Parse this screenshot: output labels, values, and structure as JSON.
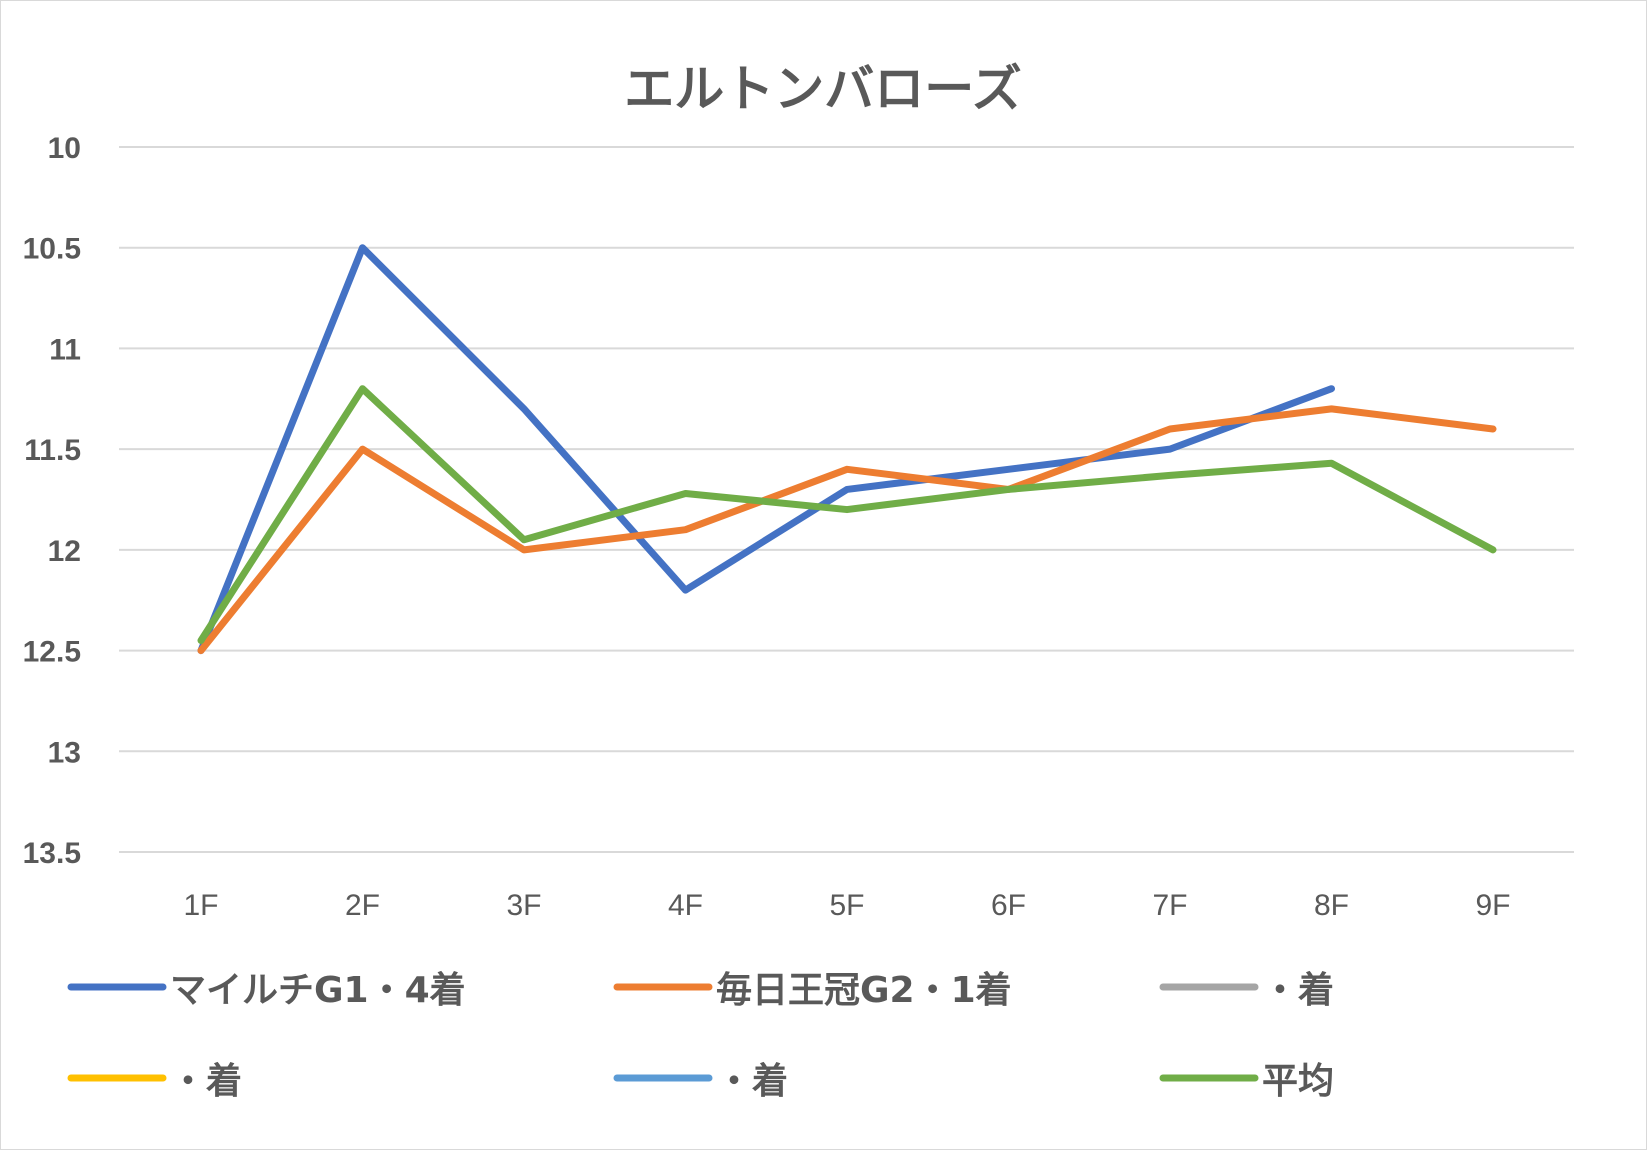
{
  "chart_data": {
    "type": "line",
    "title": "エルトンバローズ",
    "xlabel": "",
    "ylabel": "",
    "categories": [
      "1F",
      "2F",
      "3F",
      "4F",
      "5F",
      "6F",
      "7F",
      "8F",
      "9F"
    ],
    "y_axis": {
      "min": 10,
      "max": 13.5,
      "step": 0.5,
      "reversed": true,
      "tick_labels": [
        "10",
        "10.5",
        "11",
        "11.5",
        "12",
        "12.5",
        "13",
        "13.5"
      ]
    },
    "grid": true,
    "legend_position": "bottom",
    "series": [
      {
        "name": "マイルチG1・4着",
        "color": "#4472c4",
        "values": [
          12.5,
          10.5,
          11.3,
          12.2,
          11.7,
          11.6,
          11.5,
          11.2,
          null
        ]
      },
      {
        "name": "毎日王冠G2・1着",
        "color": "#ed7d31",
        "values": [
          12.5,
          11.5,
          12.0,
          11.9,
          11.6,
          11.7,
          11.4,
          11.3,
          11.4
        ]
      },
      {
        "name": "・着",
        "color": "#a5a5a5",
        "values": [
          null,
          null,
          null,
          null,
          null,
          null,
          null,
          null,
          null
        ]
      },
      {
        "name": "・着",
        "color": "#ffc000",
        "values": [
          null,
          null,
          null,
          null,
          null,
          null,
          null,
          null,
          null
        ]
      },
      {
        "name": "・着",
        "color": "#5b9bd5",
        "values": [
          null,
          null,
          null,
          null,
          null,
          null,
          null,
          null,
          null
        ]
      },
      {
        "name": "平均",
        "color": "#70ad47",
        "values": [
          12.45,
          11.2,
          11.95,
          11.72,
          11.8,
          11.7,
          11.63,
          11.57,
          12.0
        ]
      }
    ]
  }
}
